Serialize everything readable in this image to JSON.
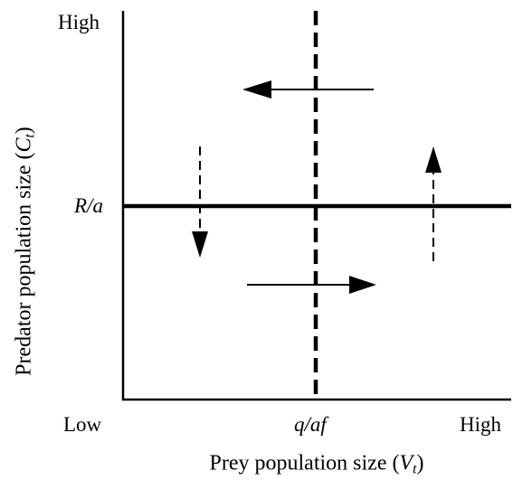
{
  "axes": {
    "y_axis_label_text": "Predator population size (",
    "y_axis_label_var": "C",
    "y_axis_label_sub": "t",
    "y_axis_label_close": ")",
    "x_axis_label_text": "Prey population size (",
    "x_axis_label_var": "V",
    "x_axis_label_sub": "t",
    "x_axis_label_close": ")",
    "y_high": "High",
    "x_low": "Low",
    "x_high": "High"
  },
  "isoclines": {
    "predator_isocline_label": "R/a",
    "prey_isocline_label": "q/af"
  },
  "colors": {
    "ink": "#000000",
    "background": "#ffffff"
  }
}
